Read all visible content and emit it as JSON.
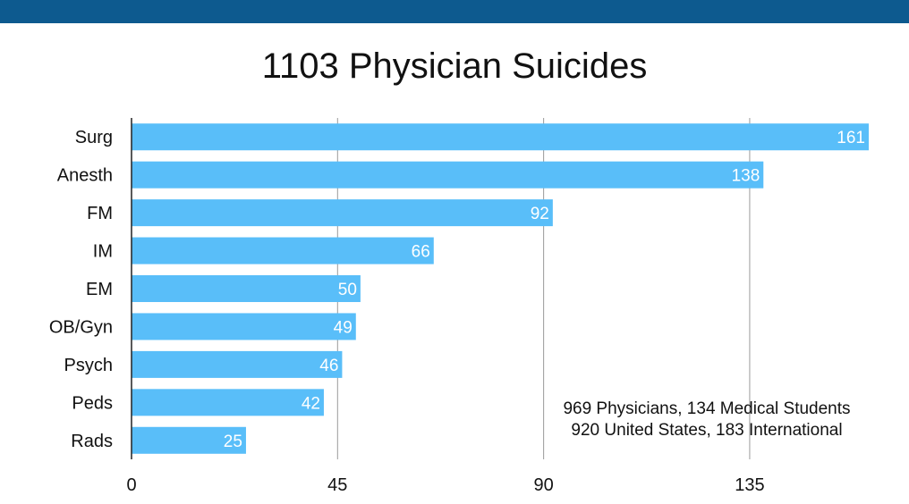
{
  "colors": {
    "band": "#0d5a8f",
    "bar": "#59bef9",
    "grid": "#9a9a9a",
    "axis": "#222222"
  },
  "chart_data": {
    "type": "bar",
    "orientation": "horizontal",
    "title": "1103 Physician Suicides",
    "categories": [
      "Surg",
      "Anesth",
      "FM",
      "IM",
      "EM",
      "OB/Gyn",
      "Psych",
      "Peds",
      "Rads"
    ],
    "values": [
      161,
      138,
      92,
      66,
      50,
      49,
      46,
      42,
      25
    ],
    "xlim": [
      0,
      161
    ],
    "x_ticks": [
      "0",
      "45",
      "90",
      "135"
    ],
    "grid": true,
    "data_labels": true,
    "xlabel": "",
    "ylabel": "",
    "annotations": [
      "969 Physicians, 134 Medical Students",
      "920 United States, 183 International"
    ]
  }
}
